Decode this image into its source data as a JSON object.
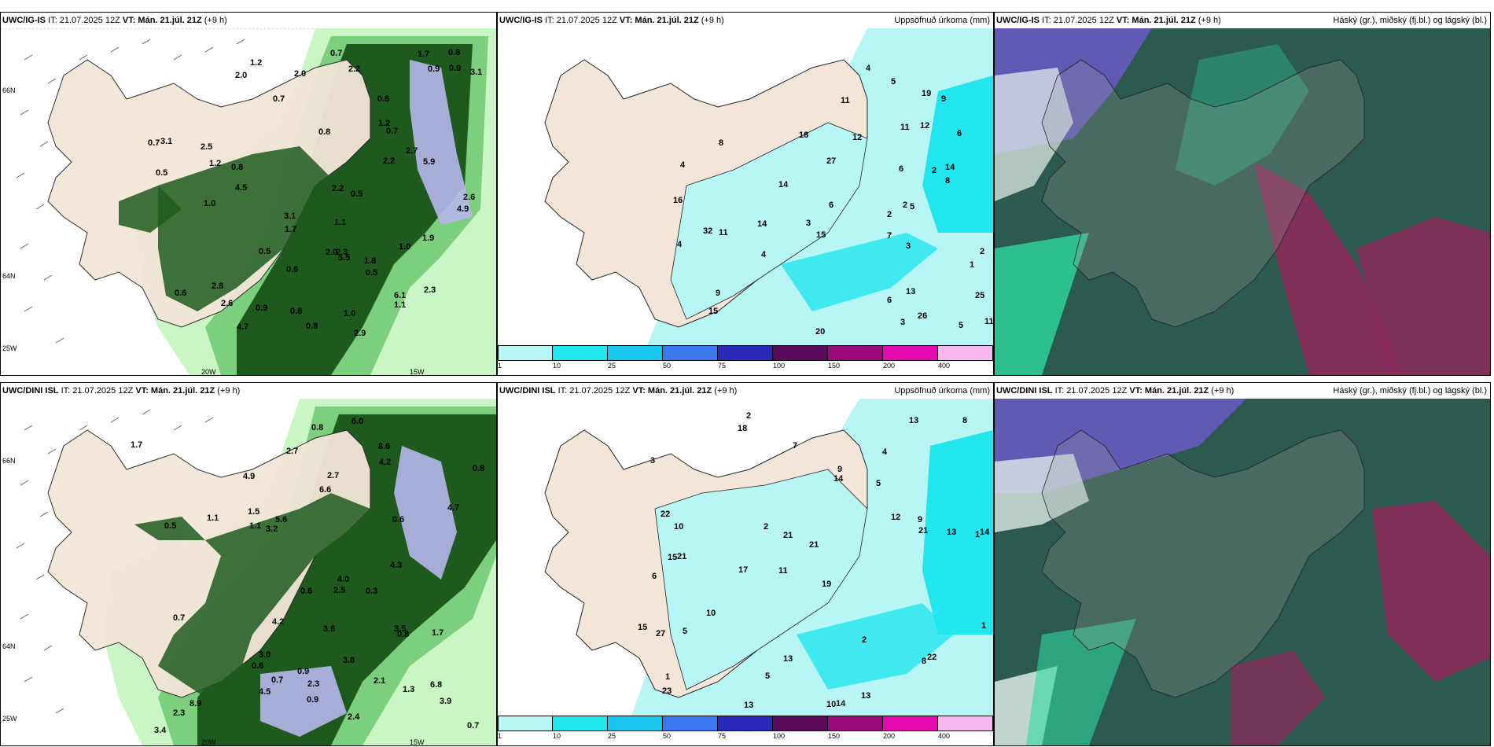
{
  "colors": {
    "land": "#f3e6d8",
    "rain_light": "#c9f6c4",
    "rain_mid": "#7ccf7c",
    "rain_dark": "#1e5a1e",
    "rain_heavy": "#b7b6ec",
    "accum_light": "#b8f6f6",
    "accum_mid": "#22e6ee",
    "cloud_dark": "#2c5a4e",
    "cloud_teal": "#2fd8a0",
    "cloud_maroon": "#8a2a5a",
    "cloud_blue": "#6a5ac8"
  },
  "rows": [
    {
      "model": "UWC/IG-IS",
      "it_label": "IT: 21.07.2025 12Z",
      "vt_label": "VT: Mán. 21.júl. 21Z",
      "lead": "(+9 h)",
      "precip_values": [
        "2.9",
        "2.0",
        "2.8",
        "2.5",
        "2.7",
        "1.0",
        "4.9",
        "4.5",
        "1.7",
        "2.6",
        "0.6",
        "0.7",
        "3.1",
        "2.3",
        "2.2",
        "1.7",
        "0.5",
        "0.9",
        "1.0",
        "5.9",
        "6.1",
        "5.5",
        "4.7",
        "1.1",
        "0.5",
        "0.7",
        "1.0",
        "1.2",
        "0.8",
        "0.7",
        "0.5",
        "0.8",
        "0.6",
        "0.9",
        "1.2",
        "0.8",
        "0.7",
        "3.1",
        "2.6",
        "1.8",
        "2.0",
        "2.2",
        "3.1",
        "2.3",
        "2.2",
        "1.9",
        "2.0",
        "0.6",
        "1.1",
        "0.9",
        "0.5",
        "0.8",
        "0.8",
        "1.2"
      ],
      "accum_values": [
        "7",
        "2",
        "2",
        "1",
        "6",
        "12",
        "14",
        "27",
        "25",
        "26",
        "2",
        "2",
        "4",
        "3",
        "4",
        "5",
        "9",
        "32",
        "19",
        "18",
        "15",
        "16",
        "6",
        "5",
        "8",
        "9",
        "8",
        "11",
        "11",
        "11",
        "6",
        "4",
        "4",
        "13",
        "14",
        "15",
        "12",
        "6",
        "5",
        "3",
        "3",
        "14",
        "11",
        "20"
      ],
      "axis_labels": [
        "66N",
        "64N",
        "25W",
        "20W",
        "15W"
      ],
      "accum_title": "Uppsöfnuð úrkoma (mm)",
      "cloud_title": "Háský (gr.), miðský (fj.bl.) og lágský (bl.)"
    },
    {
      "model": "UWC/DINI ISL",
      "it_label": "IT: 21.07.2025 12Z",
      "vt_label": "VT: Mán. 21.júl. 21Z",
      "lead": "(+9 h)",
      "precip_values": [
        "2.3",
        "1.7",
        "4.0",
        "3.6",
        "2.7",
        "6.0",
        "6.8",
        "8.6",
        "1.3",
        "0.6",
        "0.7",
        "1.1",
        "0.7",
        "0.8",
        "2.1",
        "1.5",
        "3.5",
        "0.7",
        "0.6",
        "0.8",
        "1.7",
        "8.9",
        "0.9",
        "0.3",
        "0.8",
        "4.2",
        "5.6",
        "6.6",
        "4.7",
        "3.8",
        "3.9",
        "4.2",
        "2.7",
        "3.4",
        "2.5",
        "2.4",
        "2.3",
        "0.6",
        "0.5",
        "0.9",
        "1.1",
        "3.0",
        "4.9",
        "4.5",
        "4.3",
        "3.2"
      ],
      "accum_values": [
        "2",
        "4",
        "1",
        "11",
        "19",
        "21",
        "3",
        "5",
        "6",
        "14",
        "21",
        "23",
        "18",
        "17",
        "10",
        "14",
        "13",
        "13",
        "12",
        "10",
        "10",
        "15",
        "14",
        "13",
        "15",
        "22",
        "21",
        "21",
        "22",
        "27",
        "8",
        "9",
        "5",
        "2",
        "2",
        "1",
        "9",
        "5",
        "8",
        "7",
        "1",
        "13",
        "13"
      ],
      "axis_labels": [
        "66N",
        "64N",
        "25W",
        "20W",
        "15W"
      ],
      "accum_title": "Uppsöfnuð úrkoma (mm)",
      "cloud_title": "Háský (gr.), miðský (fj.bl.) og lágský (bl.)"
    }
  ],
  "colorbar": {
    "ticks": [
      "1",
      "10",
      "25",
      "50",
      "75",
      "100",
      "150",
      "200",
      "400"
    ],
    "colors": [
      "#b8f6f6",
      "#22e6ee",
      "#18c6ee",
      "#3a78ee",
      "#2a2ab8",
      "#5a0a5a",
      "#9a0a7a",
      "#e40ab0",
      "#f6b8ee"
    ]
  }
}
